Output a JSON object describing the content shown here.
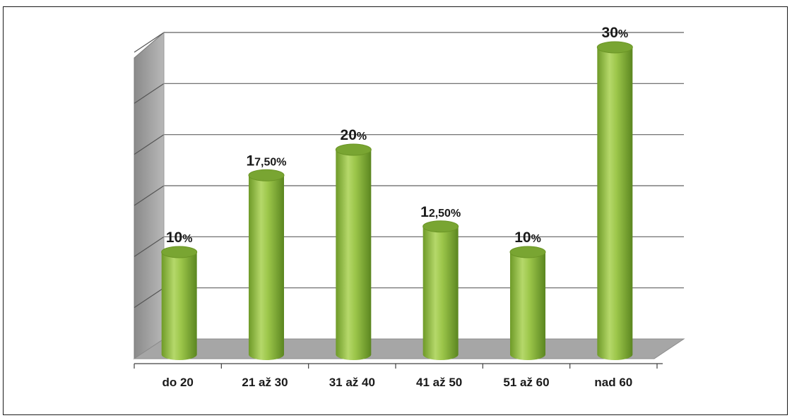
{
  "chart_data": {
    "type": "bar",
    "style": "3d-cylinder",
    "categories": [
      "do 20",
      "21 až 30",
      "31 až 40",
      "41 až 50",
      "51 až 60",
      "nad 60"
    ],
    "values": [
      10,
      17.5,
      20,
      12.5,
      10,
      30
    ],
    "data_labels": [
      "10%",
      "17,50%",
      "20%",
      "12,50%",
      "10%",
      "30%"
    ],
    "title": "",
    "xlabel": "",
    "ylabel": "",
    "ylim": [
      0,
      30
    ],
    "grid": true,
    "legend": "none",
    "colors": {
      "bar": "#8db83e",
      "bar_light": "#c4e07a",
      "bar_dark": "#5f8a22",
      "bar_top": "#79a532",
      "floor": "#a6a6a6",
      "side_wall": "#a0a0a0",
      "grid": "#606060"
    }
  }
}
